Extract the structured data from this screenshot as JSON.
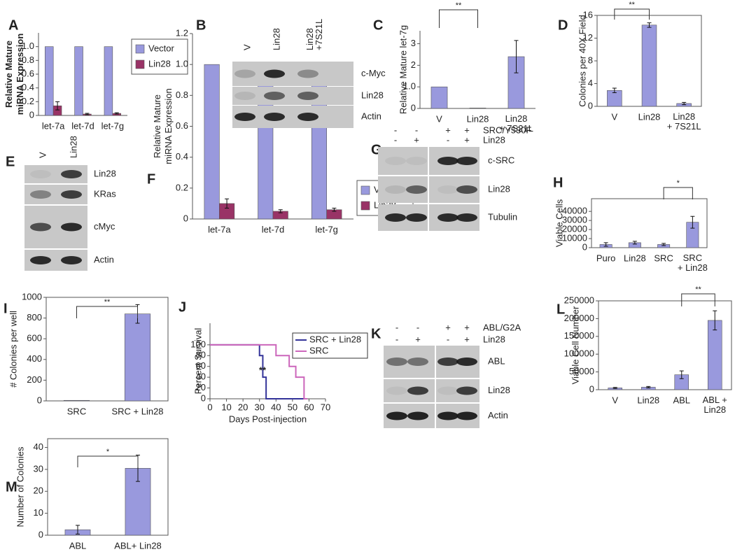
{
  "chart_data": [
    {
      "panel": "A",
      "type": "bar",
      "ylabel": "Relative Mature\nmiRNA Expression",
      "categories": [
        "let-7a",
        "let-7d",
        "let-7g"
      ],
      "series": [
        {
          "name": "Vector",
          "color": "#9999dd",
          "values": [
            1,
            1,
            1
          ]
        },
        {
          "name": "Lin28",
          "color": "#993366",
          "values": [
            0.14,
            0.02,
            0.03
          ],
          "errors": [
            0.06,
            0.01,
            0.01
          ]
        }
      ],
      "ylim": [
        0,
        1.2
      ],
      "yticks": [
        0,
        0.2,
        0.4,
        0.6,
        0.8,
        {
          "value": 1,
          "label": "1.0"
        }
      ],
      "legend": "right"
    },
    {
      "panel": "C",
      "type": "bar",
      "ylabel": "Relative Mature let-7g",
      "categories": [
        "V",
        "Lin28",
        "Lin28\n+ 7S21L"
      ],
      "color": "#9999dd",
      "values": [
        1,
        0.02,
        2.4
      ],
      "errors": [
        null,
        null,
        0.75
      ],
      "ylim": [
        0,
        3.6
      ],
      "yticks": [
        0,
        {
          "value": 1,
          "label": "1.0"
        },
        2,
        3
      ],
      "significance": [
        {
          "between": [
            0,
            1
          ],
          "label": "**"
        }
      ]
    },
    {
      "panel": "D",
      "type": "bar",
      "ylabel": "Colonies per 40X Field",
      "categories": [
        "V",
        "Lin28",
        "Lin28\n+ 7S21L"
      ],
      "color": "#9999dd",
      "values": [
        2.8,
        14.3,
        0.5
      ],
      "errors": [
        0.4,
        0.4,
        0.2
      ],
      "ylim": [
        0,
        16
      ],
      "yticks": [
        0,
        4,
        8,
        12,
        16
      ],
      "significance": [
        {
          "between": [
            0,
            1
          ],
          "label": "**"
        }
      ]
    },
    {
      "panel": "F",
      "type": "bar",
      "ylabel": "Relative Mature\nmiRNA Expression",
      "categories": [
        "let-7a",
        "let-7d",
        "let-7g"
      ],
      "series": [
        {
          "name": "Vector",
          "color": "#9999dd",
          "values": [
            1,
            1,
            1
          ]
        },
        {
          "name": "Lin28",
          "color": "#993366",
          "values": [
            0.1,
            0.05,
            0.06
          ],
          "errors": [
            0.03,
            0.01,
            0.01
          ]
        }
      ],
      "ylim": [
        0,
        1.2
      ],
      "yticks": [
        0,
        0.2,
        0.4,
        0.6,
        0.8,
        {
          "value": 1,
          "label": "1.0"
        },
        1.2
      ],
      "legend": "right"
    },
    {
      "panel": "H",
      "type": "bar",
      "ylabel": "Viable Cells",
      "categories": [
        "Puro",
        "Lin28",
        "SRC",
        "SRC\n+ Lin28"
      ],
      "color": "#9999dd",
      "values": [
        3500,
        5500,
        3500,
        28000
      ],
      "errors": [
        2000,
        1500,
        1200,
        6500
      ],
      "ylim": [
        0,
        54000
      ],
      "yticks": [
        0,
        10000,
        20000,
        30000,
        40000
      ],
      "significance": [
        {
          "between": [
            2,
            3
          ],
          "label": "*"
        }
      ]
    },
    {
      "panel": "I",
      "type": "bar",
      "ylabel": "# Colonies per well",
      "categories": [
        "SRC",
        "SRC + Lin28"
      ],
      "color": "#9999dd",
      "values": [
        5,
        840
      ],
      "errors": [
        null,
        90
      ],
      "ylim": [
        0,
        1000
      ],
      "yticks": [
        0,
        200,
        400,
        600,
        800,
        1000
      ],
      "significance": [
        {
          "between": [
            0,
            1
          ],
          "label": "**"
        }
      ]
    },
    {
      "panel": "J",
      "type": "line",
      "xlabel": "Days Post-injection",
      "ylabel": "Percent Survival",
      "series": [
        {
          "name": "SRC + Lin28",
          "color": "#333399",
          "x": [
            0,
            30,
            30,
            32,
            32,
            34,
            34,
            58
          ],
          "values": [
            100,
            100,
            80,
            80,
            40,
            40,
            0,
            0
          ]
        },
        {
          "name": "SRC",
          "color": "#cc66bb",
          "x": [
            0,
            40,
            40,
            48,
            48,
            52,
            52,
            57,
            57,
            59
          ],
          "values": [
            100,
            100,
            80,
            80,
            60,
            60,
            40,
            40,
            0,
            0
          ]
        }
      ],
      "xlim": [
        0,
        70
      ],
      "xticks": [
        0,
        10,
        20,
        30,
        40,
        50,
        60,
        70
      ],
      "ylim": [
        0,
        140
      ],
      "yticks": [
        0,
        20,
        40,
        60,
        80,
        100
      ],
      "annotation": "**",
      "legend": "upper right"
    },
    {
      "panel": "L",
      "type": "bar",
      "ylabel": "Viable Cell Number",
      "categories": [
        "V",
        "Lin28",
        "ABL",
        "ABL +\nLin28"
      ],
      "color": "#9999dd",
      "values": [
        5000,
        7000,
        42000,
        195000
      ],
      "errors": [
        1500,
        2000,
        11000,
        27000
      ],
      "ylim": [
        0,
        250000
      ],
      "yticks": [
        0,
        50000,
        100000,
        150000,
        200000,
        250000
      ],
      "significance": [
        {
          "between": [
            2,
            3
          ],
          "label": "**"
        }
      ]
    },
    {
      "panel": "M",
      "type": "bar",
      "ylabel": "Number of Colonies",
      "categories": [
        "ABL",
        "ABL+ Lin28"
      ],
      "color": "#9999dd",
      "values": [
        2.5,
        30.5
      ],
      "errors": [
        2,
        6
      ],
      "ylim": [
        0,
        44
      ],
      "yticks": [
        0,
        10,
        20,
        30,
        40
      ],
      "significance": [
        {
          "between": [
            0,
            1
          ],
          "label": "*"
        }
      ]
    }
  ],
  "blots": [
    {
      "panel": "B",
      "lanes": [
        "V",
        "Lin28",
        "Lin28\n+7S21L"
      ],
      "bands": [
        "c-Myc",
        "Lin28",
        "Actin"
      ]
    },
    {
      "panel": "E",
      "lanes": [
        "V",
        "Lin28"
      ],
      "bands": [
        "Lin28",
        "KRas",
        "cMyc",
        "Actin"
      ]
    },
    {
      "panel": "G",
      "conditions": [
        {
          "name": "SRC/Y530F",
          "signs": [
            "-",
            "-",
            "+",
            "+"
          ]
        },
        {
          "name": "Lin28",
          "signs": [
            "-",
            "+",
            "-",
            "+"
          ]
        }
      ],
      "bands": [
        "c-SRC",
        "Lin28",
        "Tubulin"
      ]
    },
    {
      "panel": "K",
      "conditions": [
        {
          "name": "ABL/G2A",
          "signs": [
            "-",
            "-",
            "+",
            "+"
          ]
        },
        {
          "name": "Lin28",
          "signs": [
            "-",
            "+",
            "-",
            "+"
          ]
        }
      ],
      "bands": [
        "ABL",
        "Lin28",
        "Actin"
      ]
    }
  ]
}
